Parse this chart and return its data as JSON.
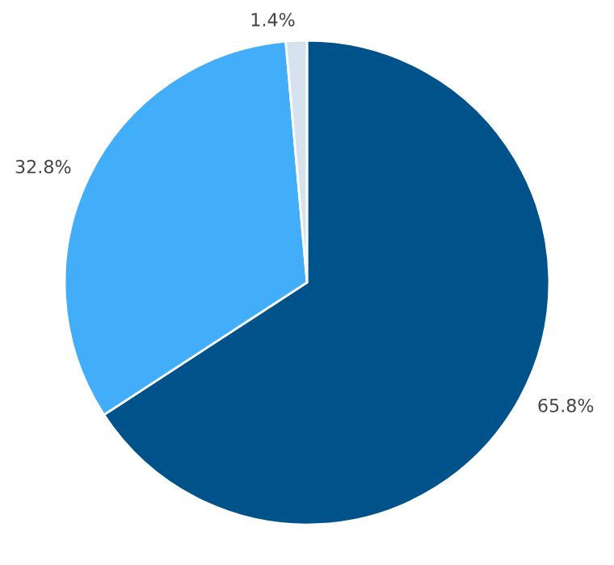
{
  "chart_data": {
    "type": "pie",
    "categories": [
      null,
      null,
      null
    ],
    "values": [
      65.8,
      32.8,
      1.4
    ],
    "colors": [
      "#00538a",
      "#42aefa",
      "#d6e2ee"
    ],
    "value_labels": [
      "65.8%",
      "32.8%",
      "1.4%"
    ]
  }
}
